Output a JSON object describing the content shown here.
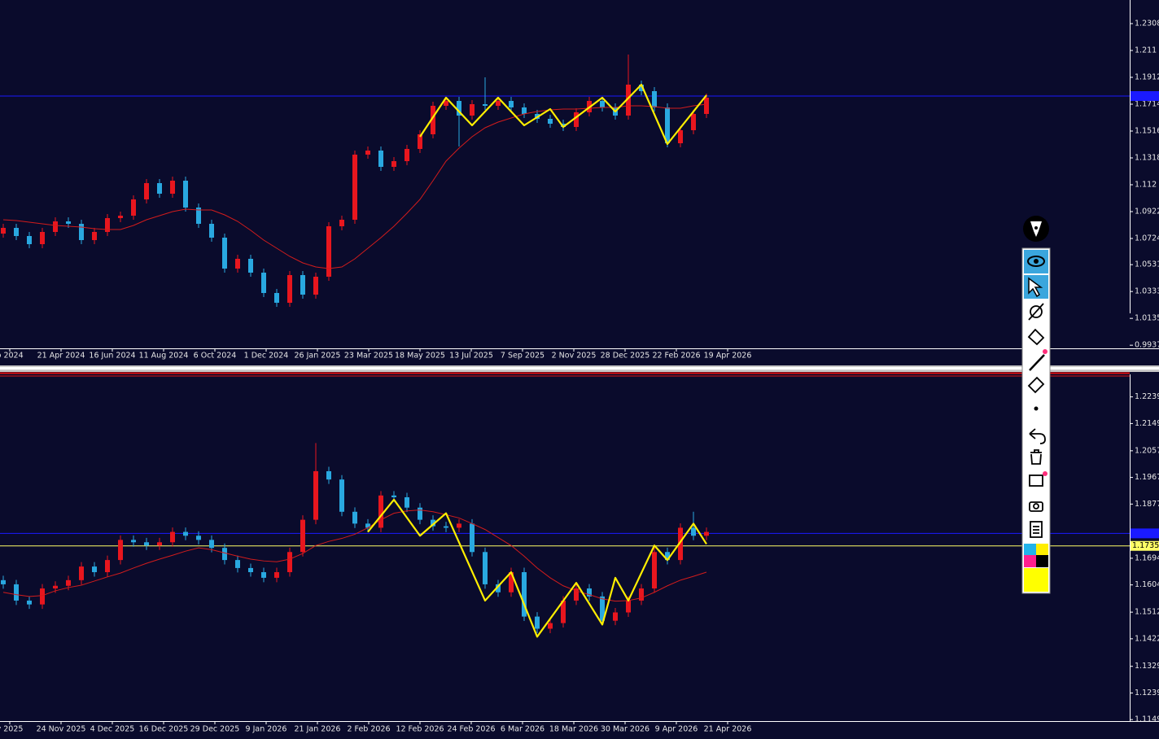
{
  "chart_data": [
    {
      "type": "candlestick",
      "up_color": "#e8161e",
      "down_color": "#29a8e0",
      "ylim": [
        0.9914,
        1.2482
      ],
      "yticks": [
        1.2308,
        1.211,
        1.1912,
        1.1714,
        1.1516,
        1.1318,
        1.112,
        1.0922,
        1.0724,
        1.0531,
        1.0333,
        1.0135,
        0.9937
      ],
      "x_labels": [
        "b 2024",
        "21 Apr 2024",
        "16 Jun 2024",
        "11 Aug 2024",
        "6 Oct 2024",
        "1 Dec 2024",
        "26 Jan 2025",
        "23 Mar 2025",
        "18 May 2025",
        "13 Jul 2025",
        "7 Sep 2025",
        "2 Nov 2025",
        "28 Dec 2025",
        "22 Feb 2026",
        "19 Apr 2026"
      ],
      "open": [
        1.076,
        1.0802,
        1.0742,
        1.0682,
        1.0772,
        1.085,
        1.0832,
        1.0712,
        1.0772,
        1.0874,
        1.0892,
        1.1012,
        1.1132,
        1.1054,
        1.115,
        1.0952,
        1.0832,
        1.073,
        1.0502,
        1.0574,
        1.0472,
        1.0322,
        1.025,
        1.0454,
        1.031,
        1.0442,
        1.0814,
        1.0862,
        1.1342,
        1.1372,
        1.1252,
        1.1294,
        1.1384,
        1.1492,
        1.1702,
        1.1738,
        1.163,
        1.1714,
        1.1702,
        1.1738,
        1.169,
        1.1642,
        1.1606,
        1.157,
        1.1546,
        1.1654,
        1.1738,
        1.169,
        1.163,
        1.1858,
        1.181,
        1.169,
        1.1426,
        1.1522,
        1.1642
      ],
      "high": [
        1.0832,
        1.0832,
        1.0772,
        1.0802,
        1.088,
        1.088,
        1.0862,
        1.0802,
        1.0904,
        1.0922,
        1.1042,
        1.1162,
        1.1162,
        1.118,
        1.118,
        1.0982,
        1.0862,
        1.076,
        1.0604,
        1.0604,
        1.0502,
        1.0352,
        1.0484,
        1.0484,
        1.0472,
        1.0844,
        1.0892,
        1.1372,
        1.1402,
        1.1402,
        1.1324,
        1.1414,
        1.1522,
        1.1732,
        1.1768,
        1.1768,
        1.1744,
        1.1912,
        1.1768,
        1.1768,
        1.172,
        1.1672,
        1.1636,
        1.16,
        1.1684,
        1.1768,
        1.1768,
        1.172,
        1.208,
        1.1888,
        1.184,
        1.172,
        1.1552,
        1.1672,
        1.1792
      ],
      "low": [
        1.073,
        1.0712,
        1.0652,
        1.0652,
        1.0742,
        1.0802,
        1.0682,
        1.0682,
        1.0742,
        1.0844,
        1.0862,
        1.0982,
        1.1024,
        1.1024,
        1.0922,
        1.0802,
        1.07,
        1.0472,
        1.0472,
        1.0442,
        1.0292,
        1.022,
        1.022,
        1.028,
        1.028,
        1.0412,
        1.0784,
        1.0832,
        1.1312,
        1.1222,
        1.1222,
        1.1264,
        1.1354,
        1.1462,
        1.1672,
        1.1402,
        1.16,
        1.1672,
        1.1672,
        1.166,
        1.1612,
        1.1576,
        1.154,
        1.1516,
        1.1516,
        1.1624,
        1.166,
        1.16,
        1.16,
        1.178,
        1.166,
        1.1396,
        1.1396,
        1.1492,
        1.1612
      ],
      "close": [
        1.0802,
        1.0742,
        1.0682,
        1.0772,
        1.085,
        1.0832,
        1.0712,
        1.0772,
        1.0874,
        1.0892,
        1.1012,
        1.1132,
        1.1054,
        1.115,
        1.0952,
        1.0832,
        1.073,
        1.0502,
        1.0574,
        1.0472,
        1.0322,
        1.025,
        1.0454,
        1.031,
        1.0442,
        1.0814,
        1.0862,
        1.1342,
        1.1372,
        1.1252,
        1.1294,
        1.1384,
        1.1492,
        1.1702,
        1.1738,
        1.163,
        1.1714,
        1.1702,
        1.1738,
        1.169,
        1.1642,
        1.1606,
        1.157,
        1.1546,
        1.1654,
        1.1738,
        1.169,
        1.163,
        1.1858,
        1.181,
        1.169,
        1.1426,
        1.1522,
        1.1642,
        1.1762
      ],
      "ma": {
        "color": "#d21c1c",
        "values": [
          1.0862,
          1.0856,
          1.0844,
          1.0832,
          1.082,
          1.0814,
          1.0808,
          1.0796,
          1.079,
          1.079,
          1.082,
          1.0862,
          1.0892,
          1.0922,
          1.094,
          1.0934,
          1.0934,
          1.0898,
          1.085,
          1.0784,
          1.0712,
          1.0652,
          1.0592,
          1.0544,
          1.0514,
          1.0502,
          1.0514,
          1.0574,
          1.0652,
          1.073,
          1.0814,
          1.091,
          1.1012,
          1.115,
          1.1294,
          1.139,
          1.1474,
          1.154,
          1.1582,
          1.1612,
          1.1642,
          1.166,
          1.1672,
          1.1678,
          1.1678,
          1.1684,
          1.169,
          1.169,
          1.1702,
          1.1702,
          1.1696,
          1.1684,
          1.1684,
          1.1702,
          1.1714
        ]
      },
      "zigzag": {
        "color": "#ffee00",
        "index": [
          32,
          34,
          36,
          38,
          40,
          42,
          43,
          46,
          47,
          49,
          51,
          54
        ],
        "price": [
          1.1474,
          1.1762,
          1.1558,
          1.1762,
          1.1558,
          1.1678,
          1.1546,
          1.1762,
          1.166,
          1.1858,
          1.142,
          1.178
        ]
      },
      "hlines": [
        {
          "value": 1.1774,
          "color": "#1a1aff"
        }
      ]
    },
    {
      "type": "candlestick",
      "up_color": "#e8161e",
      "down_color": "#29a8e0",
      "ylim": [
        1.1144,
        1.2315
      ],
      "yticks": [
        1.2239,
        1.2149,
        1.2057,
        1.1967,
        1.1877,
        1.1694,
        1.1604,
        1.1512,
        1.1422,
        1.1329,
        1.1239,
        1.1149
      ],
      "x_labels": [
        "v 2025",
        "24 Nov 2025",
        "4 Dec 2025",
        "16 Dec 2025",
        "29 Dec 2025",
        "9 Jan 2026",
        "21 Jan 2026",
        "2 Feb 2026",
        "12 Feb 2026",
        "24 Feb 2026",
        "6 Mar 2026",
        "18 Mar 2026",
        "30 Mar 2026",
        "9 Apr 2026",
        "21 Apr 2026"
      ],
      "open": [
        1.162,
        1.1606,
        1.1551,
        1.1538,
        1.1592,
        1.1601,
        1.162,
        1.1666,
        1.1647,
        1.1688,
        1.1756,
        1.1748,
        1.1737,
        1.1748,
        1.1783,
        1.177,
        1.1756,
        1.1729,
        1.1688,
        1.1661,
        1.1647,
        1.1628,
        1.1647,
        1.1715,
        1.1824,
        1.1988,
        1.196,
        1.1851,
        1.1811,
        1.1797,
        1.1906,
        1.19,
        1.1865,
        1.1824,
        1.1802,
        1.1797,
        1.1811,
        1.1715,
        1.1606,
        1.1579,
        1.1647,
        1.1497,
        1.1456,
        1.1475,
        1.1551,
        1.1592,
        1.1565,
        1.1483,
        1.1511,
        1.1551,
        1.1592,
        1.1715,
        1.1688,
        1.1797,
        1.177
      ],
      "high": [
        1.1635,
        1.1621,
        1.1566,
        1.1607,
        1.1616,
        1.1635,
        1.1681,
        1.1681,
        1.1703,
        1.1771,
        1.1771,
        1.1763,
        1.1763,
        1.1798,
        1.1798,
        1.1785,
        1.1771,
        1.1744,
        1.1703,
        1.1676,
        1.1662,
        1.1662,
        1.173,
        1.1839,
        1.2083,
        1.2003,
        1.1975,
        1.1866,
        1.1826,
        1.1921,
        1.1921,
        1.1915,
        1.188,
        1.1839,
        1.1817,
        1.1826,
        1.1826,
        1.173,
        1.1621,
        1.1662,
        1.1662,
        1.1512,
        1.149,
        1.1566,
        1.1607,
        1.1607,
        1.158,
        1.1526,
        1.1566,
        1.1607,
        1.173,
        1.173,
        1.1812,
        1.1851,
        1.1798
      ],
      "low": [
        1.1591,
        1.1536,
        1.1523,
        1.1523,
        1.1577,
        1.1586,
        1.1605,
        1.1632,
        1.1632,
        1.1673,
        1.1733,
        1.1722,
        1.1722,
        1.1733,
        1.1755,
        1.1741,
        1.1714,
        1.1673,
        1.1646,
        1.1632,
        1.1613,
        1.1613,
        1.1632,
        1.17,
        1.1809,
        1.1945,
        1.1836,
        1.1796,
        1.1782,
        1.1782,
        1.1885,
        1.185,
        1.1809,
        1.1787,
        1.1782,
        1.1782,
        1.17,
        1.1591,
        1.1564,
        1.1564,
        1.1482,
        1.1441,
        1.1441,
        1.146,
        1.1536,
        1.155,
        1.1468,
        1.1468,
        1.1496,
        1.1536,
        1.1577,
        1.1673,
        1.1673,
        1.1755,
        1.1755
      ],
      "close": [
        1.1606,
        1.1551,
        1.1538,
        1.1592,
        1.1601,
        1.162,
        1.1666,
        1.1647,
        1.1688,
        1.1756,
        1.1748,
        1.1737,
        1.1748,
        1.1783,
        1.177,
        1.1756,
        1.1729,
        1.1688,
        1.1661,
        1.1647,
        1.1628,
        1.1647,
        1.1715,
        1.1824,
        1.1988,
        1.196,
        1.1851,
        1.1811,
        1.1797,
        1.1906,
        1.19,
        1.1865,
        1.1824,
        1.1802,
        1.1797,
        1.1811,
        1.1715,
        1.1606,
        1.1579,
        1.1647,
        1.1497,
        1.1456,
        1.1475,
        1.1551,
        1.1592,
        1.1565,
        1.1483,
        1.1511,
        1.1551,
        1.1592,
        1.1715,
        1.1688,
        1.1797,
        1.177,
        1.1783
      ],
      "ma": {
        "color": "#d21c1c",
        "values": [
          1.1579,
          1.1571,
          1.1565,
          1.1568,
          1.1584,
          1.1595,
          1.1603,
          1.1617,
          1.1631,
          1.1644,
          1.1661,
          1.1677,
          1.1691,
          1.1704,
          1.1718,
          1.1729,
          1.1723,
          1.1712,
          1.1701,
          1.1691,
          1.1685,
          1.1682,
          1.1691,
          1.171,
          1.1737,
          1.1751,
          1.1761,
          1.1775,
          1.1797,
          1.1824,
          1.1846,
          1.1854,
          1.1857,
          1.1851,
          1.1841,
          1.183,
          1.1811,
          1.1791,
          1.1764,
          1.1737,
          1.1701,
          1.1661,
          1.1628,
          1.1601,
          1.1584,
          1.1571,
          1.1557,
          1.1549,
          1.1551,
          1.156,
          1.1579,
          1.1601,
          1.162,
          1.1633,
          1.1647
        ]
      },
      "zigzag": {
        "color": "#ffee00",
        "index": [
          28,
          30,
          32,
          34,
          37,
          39,
          41,
          44,
          46,
          47,
          48,
          50,
          51,
          53,
          54
        ],
        "price": [
          1.1783,
          1.1892,
          1.177,
          1.1846,
          1.1551,
          1.1647,
          1.1429,
          1.1611,
          1.147,
          1.1628,
          1.1551,
          1.1737,
          1.1688,
          1.1811,
          1.1742
        ]
      },
      "hlines": [
        {
          "value": 1.1778,
          "color": "#1a1aff"
        }
      ],
      "current_price": {
        "value": 1.17357,
        "color": "#ffff66"
      }
    }
  ]
}
